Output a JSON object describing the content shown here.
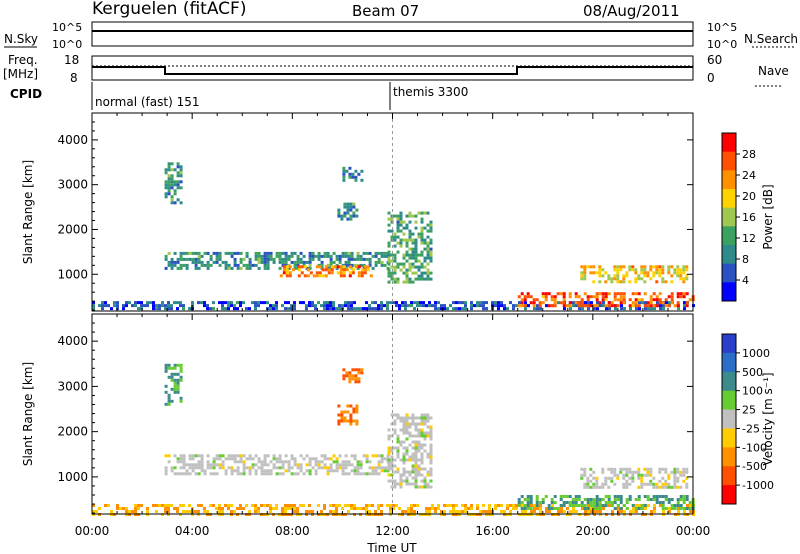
{
  "header": {
    "station": "Kerguelen (fitACF)",
    "beam": "Beam 07",
    "date": "08/Aug/2011"
  },
  "strip_labels": {
    "nsky": "N.Sky",
    "nsky_ticks": [
      "10^5",
      "10^0"
    ],
    "nsearch": "N.Search",
    "nsearch_ticks": [
      "10^5",
      "10^0"
    ],
    "freq": "Freq.",
    "freq_unit": "[MHz]",
    "freq_ticks": [
      "18",
      "8"
    ],
    "nave": "Nave",
    "nave_ticks": [
      "60",
      "0"
    ],
    "cpid": "CPID",
    "cpid_modes": [
      "normal (fast) 151",
      "themis 3300"
    ]
  },
  "chart_data": [
    {
      "type": "heatmap",
      "title": "",
      "xlabel": "Time UT",
      "ylabel": "Slant Range [km]",
      "x_ticks": [
        "00:00",
        "04:00",
        "08:00",
        "12:00",
        "16:00",
        "20:00",
        "00:00"
      ],
      "y_ticks": [
        1000,
        2000,
        3000,
        4000
      ],
      "xlim": [
        0,
        24
      ],
      "ylim": [
        180,
        4600
      ],
      "colorbar": {
        "label": "Power [dB]",
        "ticks": [
          4,
          8,
          12,
          16,
          20,
          24,
          28
        ],
        "range": [
          0,
          32
        ],
        "colors": [
          "#0000ff",
          "#2a52c0",
          "#2f8a8a",
          "#3ca060",
          "#a0c850",
          "#ffd200",
          "#ff9000",
          "#ff5000",
          "#ff0000"
        ]
      },
      "features": [
        {
          "name": "E-region",
          "t_start": 0.0,
          "t_end": 24.0,
          "r_start": 200,
          "r_end": 400,
          "level": 6
        },
        {
          "name": "band-A",
          "t_start": 2.9,
          "t_end": 11.8,
          "r_start": 1100,
          "r_end": 1500,
          "level": 10
        },
        {
          "name": "band-A-core",
          "t_start": 7.5,
          "t_end": 11.2,
          "r_start": 950,
          "r_end": 1200,
          "level": 24
        },
        {
          "name": "patch-3000",
          "t_start": 2.9,
          "t_end": 3.6,
          "r_start": 2600,
          "r_end": 3500,
          "level": 10
        },
        {
          "name": "patch-2400",
          "t_start": 9.8,
          "t_end": 10.6,
          "r_start": 2200,
          "r_end": 2600,
          "level": 10
        },
        {
          "name": "patch-3300",
          "t_start": 10.0,
          "t_end": 10.8,
          "r_start": 3100,
          "r_end": 3400,
          "level": 8
        },
        {
          "name": "rising-arc",
          "t_start": 11.8,
          "t_end": 13.5,
          "r_start": 800,
          "r_end": 2400,
          "level": 12
        },
        {
          "name": "late-band",
          "t_start": 19.5,
          "t_end": 23.8,
          "r_start": 800,
          "r_end": 1200,
          "level": 20
        },
        {
          "name": "late-lower",
          "t_start": 17.0,
          "t_end": 24.0,
          "r_start": 300,
          "r_end": 600,
          "level": 26
        }
      ]
    },
    {
      "type": "heatmap",
      "title": "",
      "xlabel": "Time UT",
      "ylabel": "Slant Range [km]",
      "x_ticks": [
        "00:00",
        "04:00",
        "08:00",
        "12:00",
        "16:00",
        "20:00",
        "00:00"
      ],
      "y_ticks": [
        1000,
        2000,
        3000,
        4000
      ],
      "xlim": [
        0,
        24
      ],
      "ylim": [
        180,
        4600
      ],
      "colorbar": {
        "label": "Velocity [m s⁻¹]",
        "ticks": [
          1000,
          500,
          100,
          25,
          -25,
          -100,
          -500,
          -1000
        ],
        "colors": [
          "#2a40c8",
          "#2a6ec8",
          "#3c8a8a",
          "#66cc33",
          "#c0c0c0",
          "#ffcc00",
          "#ff9000",
          "#ff5000",
          "#ff0000"
        ]
      },
      "features": [
        {
          "name": "E-region",
          "t_start": 0.0,
          "t_end": 24.0,
          "r_start": 200,
          "r_end": 400,
          "velocity": -100
        },
        {
          "name": "band-A",
          "t_start": 2.9,
          "t_end": 11.8,
          "r_start": 1100,
          "r_end": 1500,
          "velocity": 0
        },
        {
          "name": "patch-3000",
          "t_start": 2.9,
          "t_end": 3.6,
          "r_start": 2600,
          "r_end": 3500,
          "velocity": 100
        },
        {
          "name": "patch-2400",
          "t_start": 9.8,
          "t_end": 10.6,
          "r_start": 2200,
          "r_end": 2600,
          "velocity": -500
        },
        {
          "name": "patch-3300",
          "t_start": 10.0,
          "t_end": 10.8,
          "r_start": 3100,
          "r_end": 3400,
          "velocity": -500
        },
        {
          "name": "rising-arc",
          "t_start": 11.8,
          "t_end": 13.5,
          "r_start": 800,
          "r_end": 2400,
          "velocity": 0
        },
        {
          "name": "late-band",
          "t_start": 19.5,
          "t_end": 23.8,
          "r_start": 800,
          "r_end": 1200,
          "velocity": 0
        },
        {
          "name": "late-lower",
          "t_start": 17.0,
          "t_end": 24.0,
          "r_start": 300,
          "r_end": 600,
          "velocity": 100
        }
      ]
    }
  ]
}
